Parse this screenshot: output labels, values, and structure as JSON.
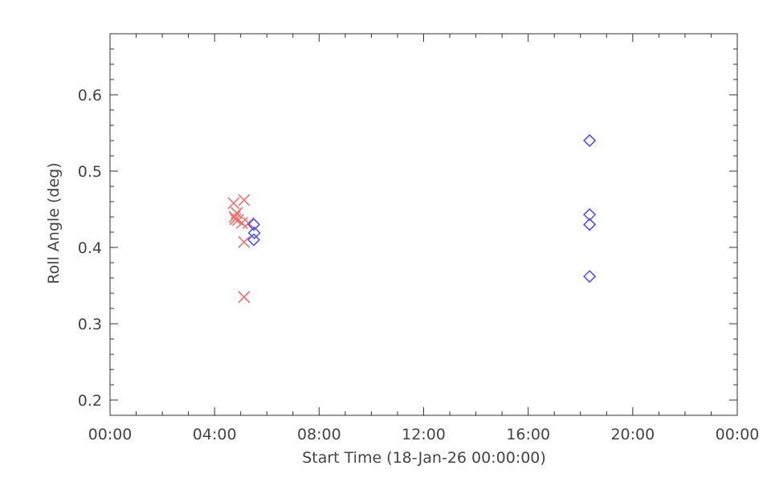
{
  "chart_data": {
    "type": "scatter",
    "title": "",
    "xlabel": "Start Time (18-Jan-26 00:00:00)",
    "ylabel": "Roll Angle (deg)",
    "x_unit": "hours",
    "xlim": [
      0,
      24
    ],
    "ylim": [
      0.18,
      0.68
    ],
    "grid": false,
    "x_ticks": [
      {
        "value": 0,
        "label": "00:00"
      },
      {
        "value": 4,
        "label": "04:00"
      },
      {
        "value": 8,
        "label": "08:00"
      },
      {
        "value": 12,
        "label": "12:00"
      },
      {
        "value": 16,
        "label": "16:00"
      },
      {
        "value": 20,
        "label": "20:00"
      },
      {
        "value": 24,
        "label": "00:00"
      }
    ],
    "y_ticks": [
      {
        "value": 0.2,
        "label": "0.2"
      },
      {
        "value": 0.3,
        "label": "0.3"
      },
      {
        "value": 0.4,
        "label": "0.4"
      },
      {
        "value": 0.5,
        "label": "0.5"
      },
      {
        "value": 0.6,
        "label": "0.6"
      }
    ],
    "series": [
      {
        "marker": "x",
        "color": "#f07070",
        "points": [
          {
            "x": 4.73,
            "y": 0.458
          },
          {
            "x": 4.77,
            "y": 0.44
          },
          {
            "x": 4.8,
            "y": 0.437
          },
          {
            "x": 4.85,
            "y": 0.445
          },
          {
            "x": 4.9,
            "y": 0.436
          },
          {
            "x": 5.05,
            "y": 0.432
          },
          {
            "x": 5.13,
            "y": 0.462
          },
          {
            "x": 5.13,
            "y": 0.407
          },
          {
            "x": 5.13,
            "y": 0.335
          },
          {
            "x": 5.3,
            "y": 0.432
          }
        ]
      },
      {
        "marker": "diamond",
        "color": "#5555ee",
        "points": [
          {
            "x": 5.5,
            "y": 0.43
          },
          {
            "x": 5.52,
            "y": 0.419
          },
          {
            "x": 5.5,
            "y": 0.41
          },
          {
            "x": 18.35,
            "y": 0.54
          },
          {
            "x": 18.35,
            "y": 0.443
          },
          {
            "x": 18.35,
            "y": 0.43
          },
          {
            "x": 18.35,
            "y": 0.362
          }
        ]
      }
    ]
  }
}
